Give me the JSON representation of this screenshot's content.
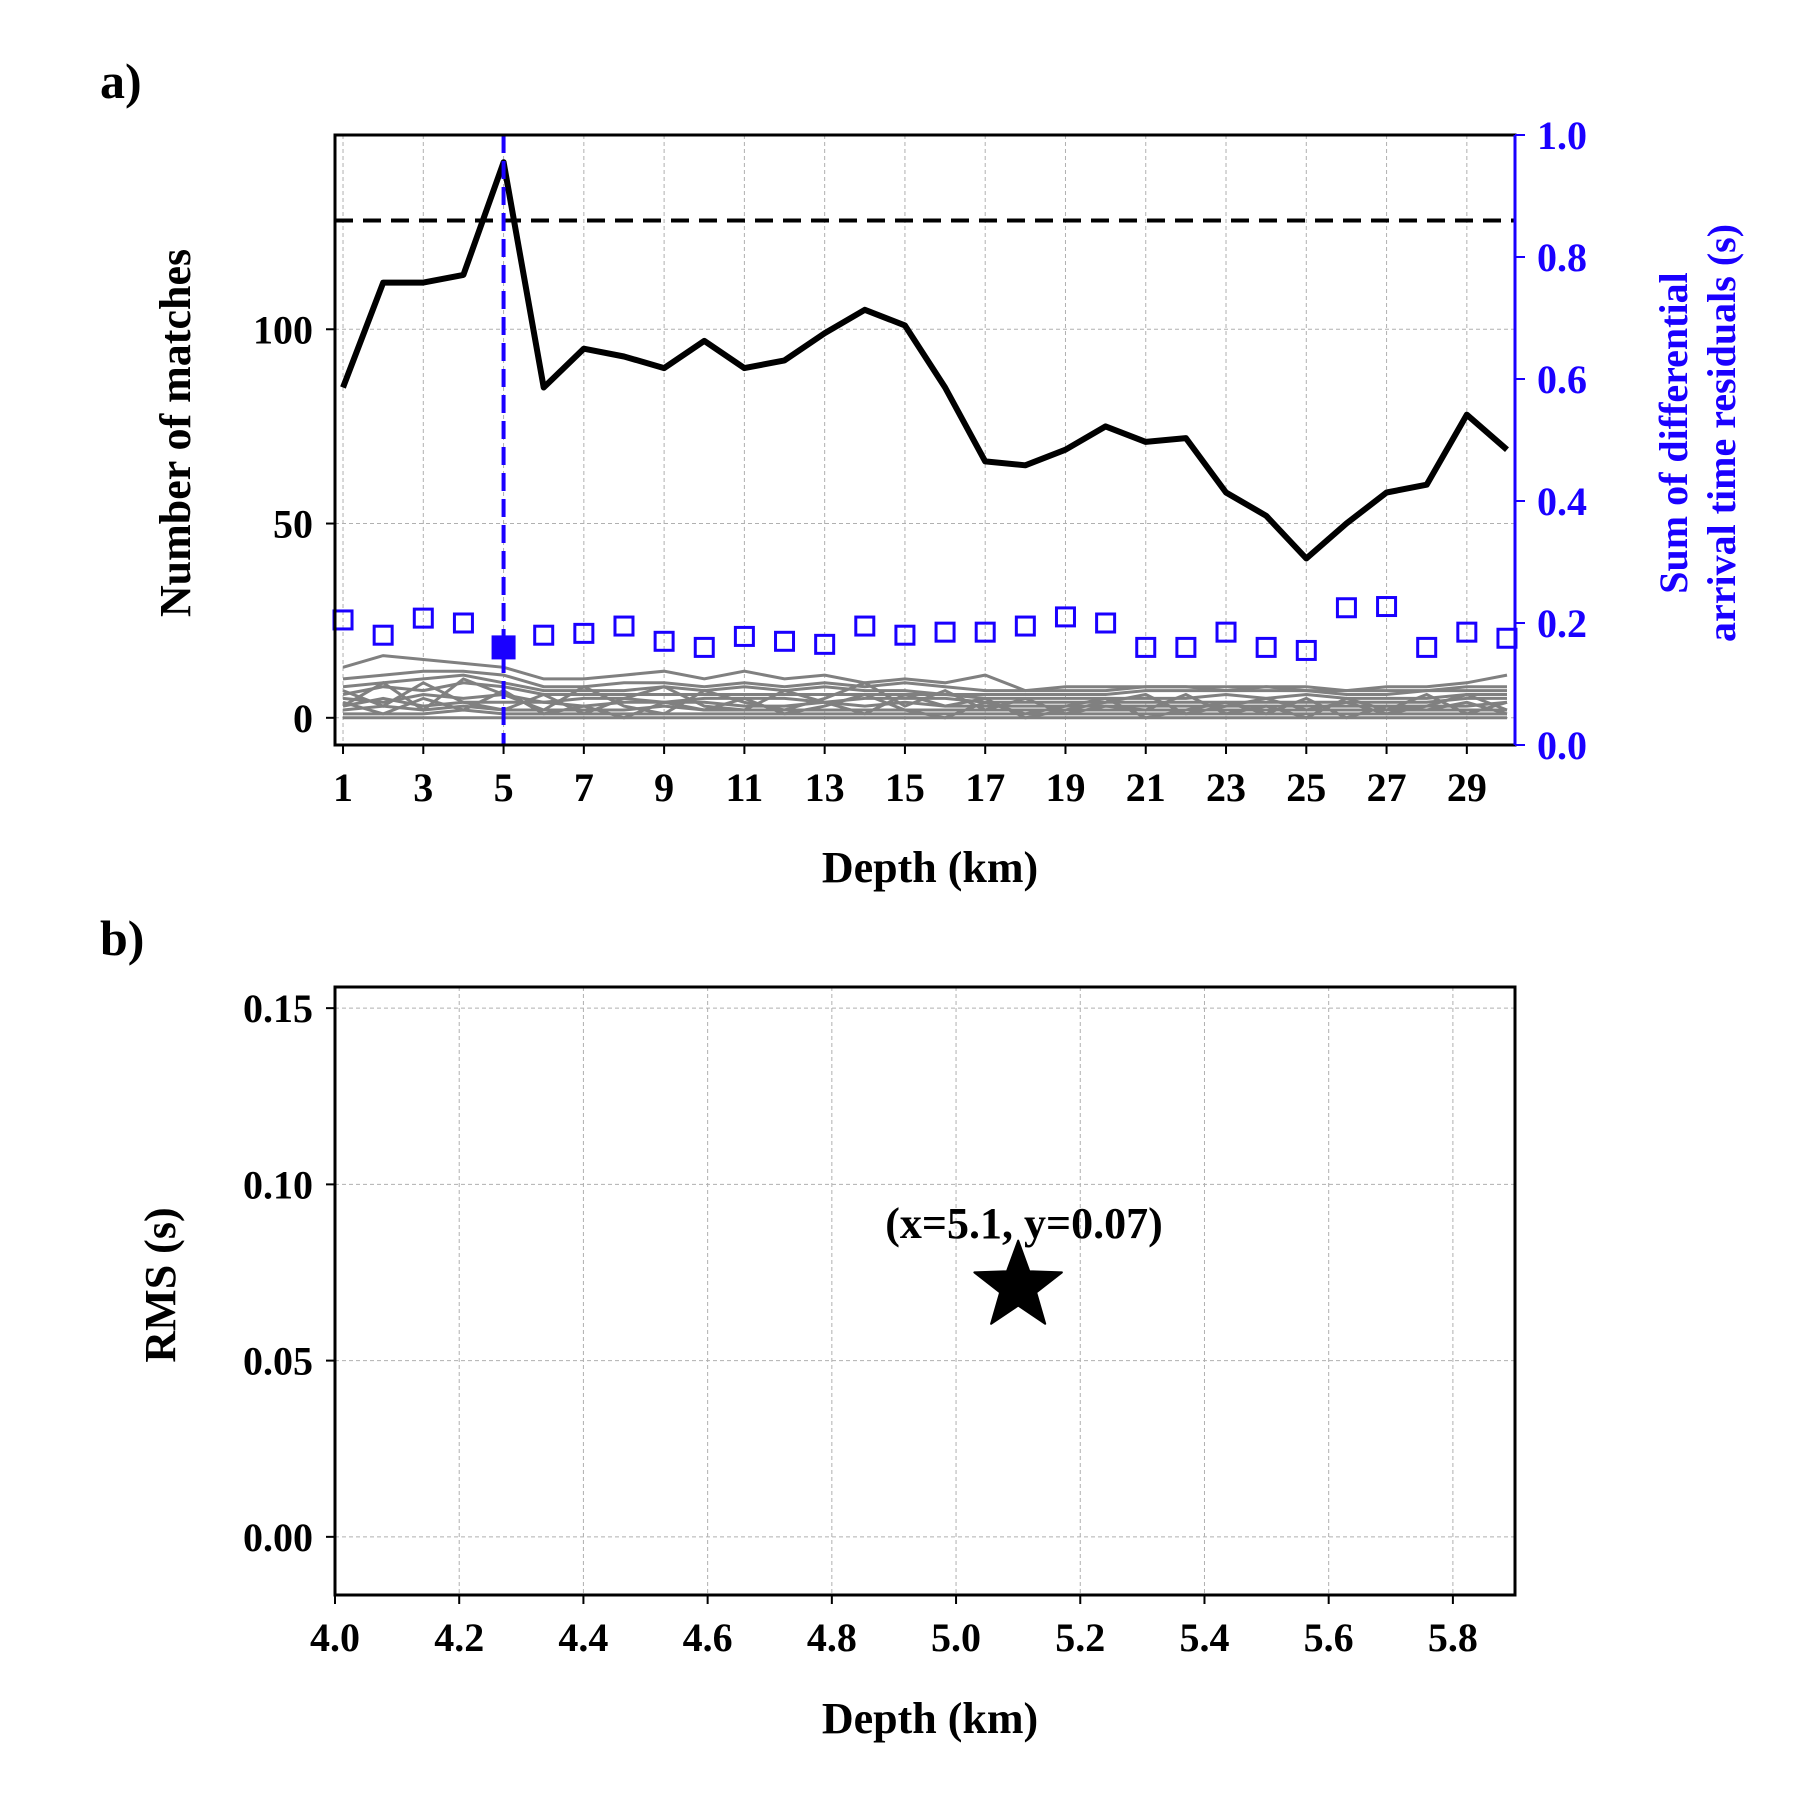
{
  "chart_data": [
    {
      "panel_label": "a)",
      "type": "line",
      "xlabel": "Depth (km)",
      "ylabel": "Number of matches",
      "y2label_line1": "Sum of differential",
      "y2label_line2": "arrival time residuals (s)",
      "xlim": [
        0.8,
        30.2
      ],
      "ylim": [
        -7,
        150
      ],
      "y2lim": [
        0,
        1.0
      ],
      "x_ticks": [
        1,
        3,
        5,
        7,
        9,
        11,
        13,
        15,
        17,
        19,
        21,
        23,
        25,
        27,
        29
      ],
      "y_ticks": [
        0,
        50,
        100
      ],
      "y2_ticks": [
        "0.0",
        "0.2",
        "0.4",
        "0.6",
        "0.8",
        "1.0"
      ],
      "grid": true,
      "colors": {
        "primary": "#000000",
        "secondary": "#1a00ff",
        "background_lines": "#808080"
      },
      "threshold_line": {
        "y": 128,
        "style": "dashed",
        "color": "#000000"
      },
      "selected_depth_line": {
        "x": 5,
        "style": "dashed",
        "color": "#1a00ff"
      },
      "x": [
        1,
        2,
        3,
        4,
        5,
        6,
        7,
        8,
        9,
        10,
        11,
        12,
        13,
        14,
        15,
        16,
        17,
        18,
        19,
        20,
        21,
        22,
        23,
        24,
        25,
        26,
        27,
        28,
        29,
        30
      ],
      "series": [
        {
          "axis": "left",
          "style": "line",
          "color": "#000000",
          "values": [
            85,
            112,
            112,
            114,
            143,
            85,
            95,
            93,
            90,
            97,
            90,
            92,
            99,
            105,
            101,
            85,
            66,
            65,
            69,
            75,
            71,
            72,
            58,
            52,
            41,
            50,
            58,
            60,
            78,
            69
          ]
        },
        {
          "axis": "right",
          "style": "open-square",
          "color": "#1a00ff",
          "values": [
            0.205,
            0.18,
            0.208,
            0.2,
            0.16,
            0.18,
            0.183,
            0.195,
            0.17,
            0.16,
            0.178,
            0.17,
            0.165,
            0.195,
            0.18,
            0.185,
            0.185,
            0.195,
            0.21,
            0.2,
            0.16,
            0.16,
            0.185,
            0.16,
            0.155,
            0.225,
            0.227,
            0.16,
            0.185,
            0.175
          ],
          "highlighted": {
            "x": 5,
            "y": 0.16,
            "style": "filled-square"
          }
        }
      ],
      "background_lines": [
        [
          13,
          16,
          15,
          14,
          13,
          10,
          10,
          11,
          12,
          10,
          12,
          10,
          11,
          9,
          10,
          9,
          11,
          7,
          8,
          8,
          8,
          8,
          8,
          8,
          8,
          7,
          8,
          8,
          9,
          11
        ],
        [
          10,
          11,
          12,
          12,
          11,
          8,
          8,
          9,
          9,
          8,
          9,
          8,
          9,
          8,
          9,
          8,
          7,
          7,
          7,
          7,
          8,
          8,
          7,
          7,
          7,
          7,
          7,
          7,
          8,
          8
        ],
        [
          8,
          9,
          10,
          11,
          9,
          7,
          7,
          7,
          8,
          7,
          8,
          7,
          8,
          7,
          7,
          6,
          6,
          6,
          6,
          6,
          7,
          7,
          7,
          8,
          7,
          6,
          6,
          7,
          7,
          7
        ],
        [
          6,
          8,
          7,
          9,
          8,
          6,
          6,
          6,
          6,
          6,
          6,
          6,
          6,
          6,
          6,
          6,
          5,
          5,
          5,
          5,
          5,
          5,
          6,
          5,
          6,
          5,
          5,
          5,
          6,
          6
        ],
        [
          5,
          4,
          6,
          5,
          6,
          4,
          5,
          5,
          4,
          5,
          5,
          5,
          4,
          5,
          5,
          5,
          4,
          4,
          4,
          4,
          4,
          4,
          4,
          4,
          4,
          4,
          4,
          4,
          5,
          5
        ],
        [
          3,
          5,
          3,
          4,
          4,
          4,
          3,
          4,
          4,
          4,
          3,
          3,
          4,
          3,
          4,
          3,
          3,
          3,
          3,
          3,
          3,
          3,
          3,
          3,
          3,
          3,
          3,
          3,
          3,
          4
        ],
        [
          2,
          3,
          2,
          3,
          2,
          2,
          2,
          2,
          3,
          2,
          2,
          2,
          2,
          2,
          2,
          2,
          2,
          2,
          2,
          2,
          2,
          2,
          2,
          2,
          2,
          2,
          2,
          2,
          2,
          2
        ],
        [
          1,
          1,
          1,
          2,
          1,
          1,
          1,
          1,
          1,
          1,
          1,
          1,
          1,
          1,
          1,
          1,
          1,
          1,
          1,
          1,
          1,
          1,
          1,
          1,
          1,
          1,
          1,
          1,
          1,
          1
        ],
        [
          0,
          0,
          0,
          0,
          0,
          0,
          0,
          0,
          0,
          0,
          0,
          0,
          0,
          0,
          0,
          0,
          0,
          0,
          0,
          0,
          0,
          0,
          0,
          0,
          0,
          0,
          0,
          0,
          0,
          0
        ],
        [
          4,
          1,
          5,
          2,
          7,
          1,
          3,
          0,
          4,
          2,
          5,
          1,
          3,
          6,
          2,
          0,
          4,
          1,
          3,
          5,
          0,
          2,
          4,
          1,
          5,
          0,
          3,
          2,
          4,
          1
        ],
        [
          7,
          3,
          9,
          4,
          2,
          6,
          1,
          5,
          8,
          3,
          2,
          7,
          4,
          1,
          6,
          3,
          5,
          0,
          2,
          4,
          6,
          1,
          3,
          5,
          2,
          4,
          1,
          3,
          6,
          2
        ],
        [
          3,
          9,
          2,
          10,
          6,
          2,
          8,
          3,
          1,
          7,
          4,
          2,
          5,
          9,
          3,
          7,
          2,
          5,
          1,
          3,
          2,
          6,
          1,
          3,
          0,
          5,
          2,
          6,
          1,
          4
        ]
      ]
    },
    {
      "panel_label": "b)",
      "type": "scatter",
      "xlabel": "Depth (km)",
      "ylabel": "RMS (s)",
      "xlim": [
        4.0,
        5.9
      ],
      "ylim": [
        -0.0165,
        0.156
      ],
      "x_ticks": [
        "4.0",
        "4.2",
        "4.4",
        "4.6",
        "4.8",
        "5.0",
        "5.2",
        "5.4",
        "5.6",
        "5.8"
      ],
      "y_ticks": [
        "0.00",
        "0.05",
        "0.10",
        "0.15"
      ],
      "grid": true,
      "points": [
        {
          "x": 5.1,
          "y": 0.071,
          "marker": "star",
          "color": "#000000"
        }
      ],
      "annotation": "(x=5.1, y=0.07)"
    }
  ]
}
